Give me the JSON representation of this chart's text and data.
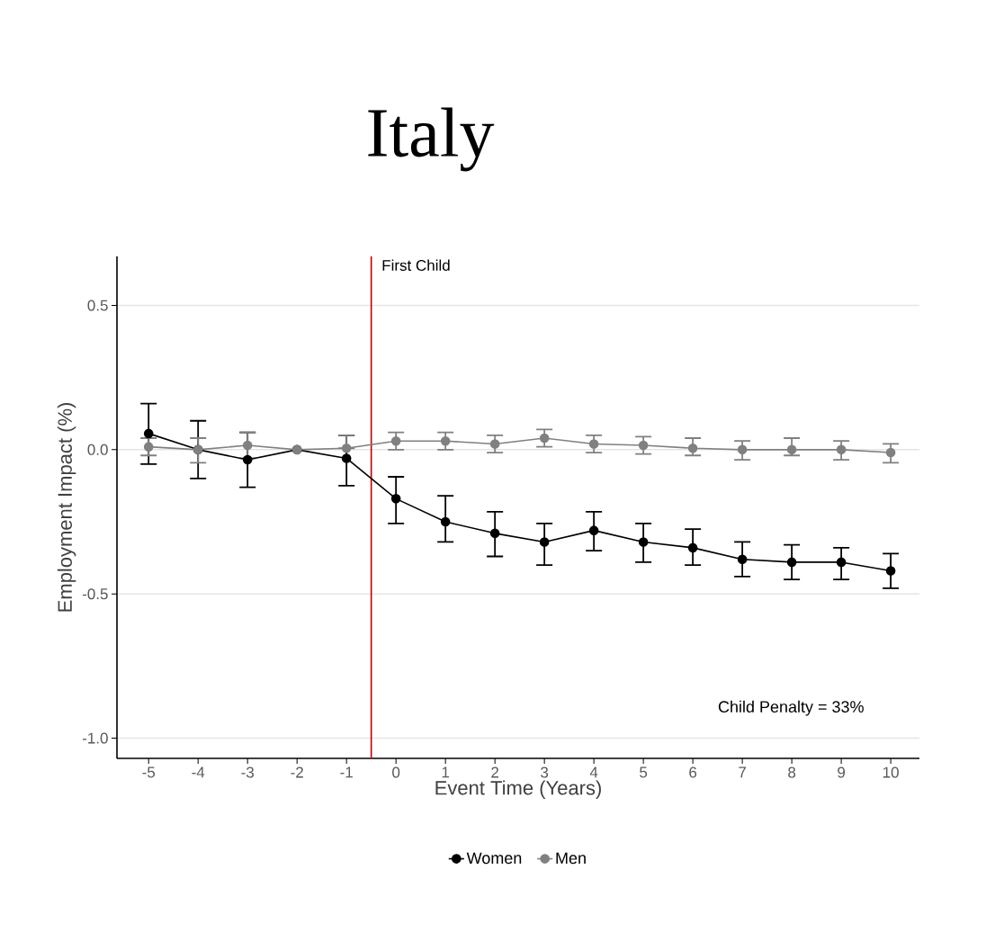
{
  "chart_data": {
    "type": "line",
    "title": "Italy",
    "xlabel": "Event Time (Years)",
    "ylabel": "Employment Impact (%)",
    "x": [
      -5,
      -4,
      -3,
      -2,
      -1,
      0,
      1,
      2,
      3,
      4,
      5,
      6,
      7,
      8,
      9,
      10
    ],
    "series": [
      {
        "name": "Women",
        "color": "#000000",
        "values": [
          0.056,
          0,
          -0.035,
          0,
          -0.03,
          -0.17,
          -0.25,
          -0.29,
          -0.32,
          -0.28,
          -0.32,
          -0.34,
          -0.38,
          -0.39,
          -0.39,
          -0.42
        ],
        "errors": [
          [
            -0.05,
            0.16
          ],
          [
            -0.1,
            0.1
          ],
          [
            -0.13,
            0.06
          ],
          null,
          [
            -0.125,
            0.05
          ],
          [
            -0.256,
            -0.094
          ],
          [
            -0.32,
            -0.16
          ],
          [
            -0.37,
            -0.215
          ],
          [
            -0.4,
            -0.256
          ],
          [
            -0.35,
            -0.215
          ],
          [
            -0.39,
            -0.256
          ],
          [
            -0.4,
            -0.275
          ],
          [
            -0.44,
            -0.32
          ],
          [
            -0.45,
            -0.33
          ],
          [
            -0.45,
            -0.34
          ],
          [
            -0.48,
            -0.36
          ]
        ]
      },
      {
        "name": "Men",
        "color": "#808080",
        "values": [
          0.01,
          0,
          0.015,
          0,
          0.005,
          0.03,
          0.03,
          0.02,
          0.04,
          0.02,
          0.015,
          0.005,
          0,
          0,
          0,
          -0.01
        ],
        "errors": [
          [
            -0.02,
            0.04
          ],
          [
            -0.045,
            0.04
          ],
          [
            -0.03,
            0.06
          ],
          null,
          [
            0.005,
            0.05
          ],
          [
            0,
            0.06
          ],
          [
            0,
            0.06
          ],
          [
            -0.01,
            0.05
          ],
          [
            0.01,
            0.07
          ],
          [
            -0.01,
            0.05
          ],
          [
            -0.015,
            0.045
          ],
          [
            -0.02,
            0.04
          ],
          [
            -0.035,
            0.03
          ],
          [
            -0.02,
            0.04
          ],
          [
            -0.035,
            0.03
          ],
          [
            -0.045,
            0.02
          ]
        ]
      }
    ],
    "xlim": [
      -5.64,
      10.58
    ],
    "ylim": [
      -1.07,
      0.67
    ],
    "xticks": [
      -5,
      -4,
      -3,
      -2,
      -1,
      0,
      1,
      2,
      3,
      4,
      5,
      6,
      7,
      8,
      9,
      10
    ],
    "yticks": [
      {
        "value": -1.0,
        "label": "-1.0"
      },
      -0.5,
      {
        "value": 0,
        "label": "0.0"
      },
      0.5
    ],
    "ref_lines": [
      {
        "axis": "x",
        "value": -0.5,
        "label": "First Child",
        "color": "#c00000"
      }
    ],
    "annotations": [
      "Child Penalty = 33%"
    ],
    "grid": "y",
    "legend": "bottom",
    "marker": "circle",
    "line_style": "solid"
  }
}
